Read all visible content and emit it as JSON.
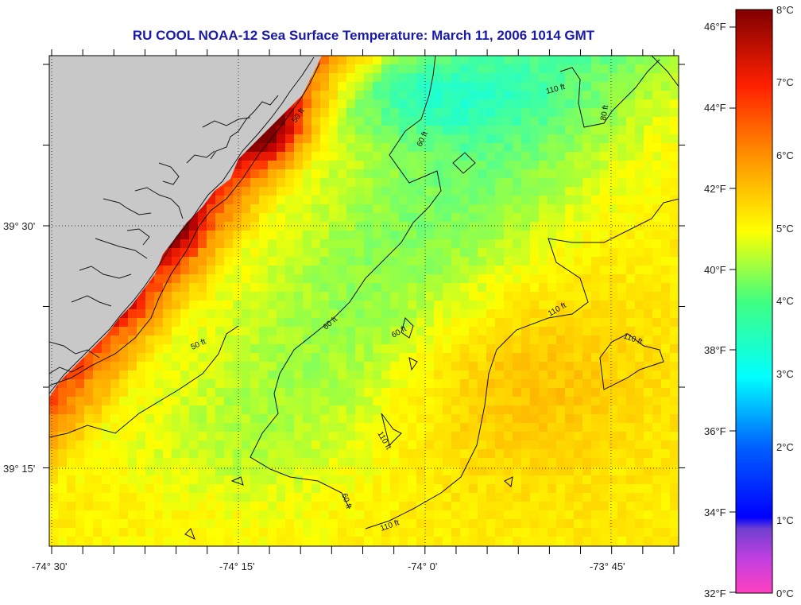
{
  "title": "RU COOL  NOAA-12  Sea Surface Temperature:  March 11, 2006 1014 GMT",
  "map": {
    "lat_labels": [
      "39° 30'",
      "39° 15'"
    ],
    "lon_labels": [
      "-74° 30'",
      "-74° 15'",
      "-74° 0'",
      "-73° 45'"
    ],
    "contour_labels": [
      "50 ft",
      "50 ft",
      "60 ft",
      "60 ft",
      "60 ft",
      "60 ft",
      "80 ft",
      "110 ft",
      "110 ft",
      "110 ft",
      "110 ft",
      "110 ft"
    ],
    "land_color": "#c8c8c8",
    "sst_range_c": [
      0,
      8
    ],
    "sst_range_f": [
      32,
      46
    ]
  },
  "colorbar": {
    "fahrenheit": [
      "46°F",
      "44°F",
      "42°F",
      "40°F",
      "38°F",
      "36°F",
      "34°F",
      "32°F"
    ],
    "celsius": [
      "8°C",
      "7°C",
      "6°C",
      "5°C",
      "4°C",
      "3°C",
      "2°C",
      "1°C",
      "0°C"
    ],
    "stops": [
      "#ff40c0",
      "#8040c0",
      "#0000ff",
      "#00a0ff",
      "#00ffff",
      "#40ff80",
      "#ffff00",
      "#ffa000",
      "#ff3000",
      "#c00000",
      "#800000"
    ]
  }
}
